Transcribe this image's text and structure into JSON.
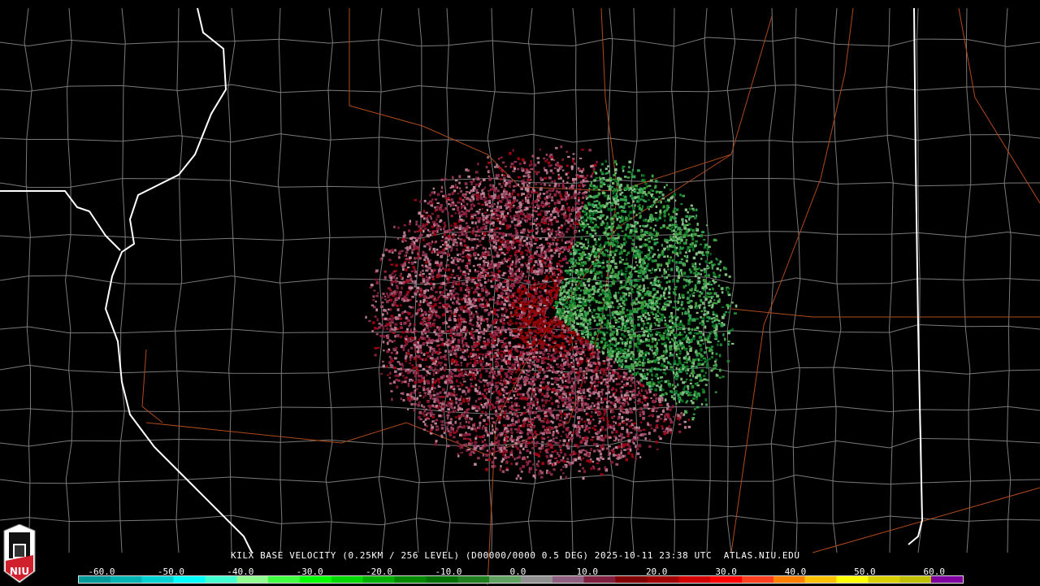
{
  "header": {
    "title": "KILX BASE VELOCITY (0.25KM / 256 LEVEL) (D00000/0000 0.5 DEG) 2025-10-11 23:38 UTC  ATLAS.NIU.EDU"
  },
  "logo": {
    "text": "NIU",
    "colors": {
      "red": "#d0202e",
      "white": "#ffffff"
    }
  },
  "colorbar": {
    "units_range": [
      -64,
      64
    ],
    "tick_labels": [
      "-60.0",
      "-50.0",
      "-40.0",
      "-30.0",
      "-20.0",
      "-10.0",
      "0.0",
      "10.0",
      "20.0",
      "30.0",
      "40.0",
      "50.0",
      "60.0"
    ],
    "colors": [
      "#009a9a",
      "#00b4b4",
      "#00d2d2",
      "#00ffff",
      "#40ffd0",
      "#90ff90",
      "#40ff40",
      "#00ff00",
      "#00d800",
      "#00b000",
      "#008800",
      "#007000",
      "#208020",
      "#60a060",
      "#909090",
      "#906080",
      "#802040",
      "#800000",
      "#a00000",
      "#d00000",
      "#ff0000",
      "#ff4020",
      "#ff8000",
      "#ffc000",
      "#ffff00",
      "#d8d000",
      "#c0c000",
      "#8000a0"
    ]
  },
  "map": {
    "radar_site": "KILX",
    "inbound_color": "#2e9e3e",
    "outbound_color": "#a0405a",
    "state_border_color": "#ffffff",
    "county_color": "#808080",
    "road_color": "#c05020"
  }
}
